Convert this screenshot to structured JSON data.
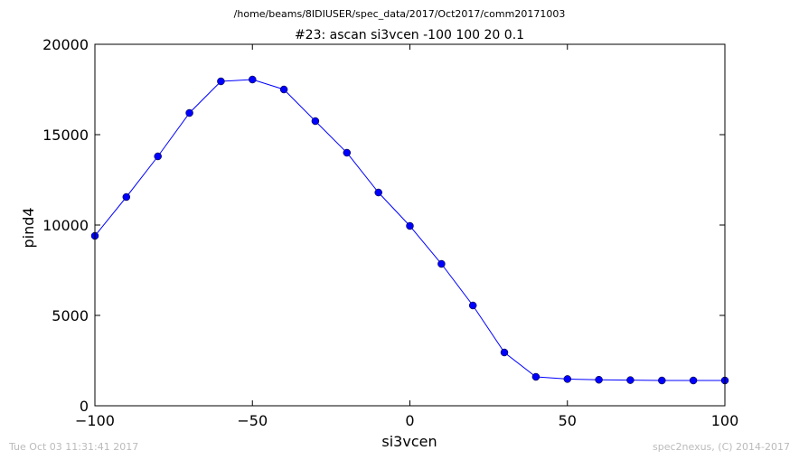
{
  "header": {
    "path": "/home/beams/8IDIUSER/spec_data/2017/Oct2017/comm20171003",
    "footer_left": "Tue Oct 03 11:31:41 2017",
    "footer_right": "spec2nexus, (C) 2014-2017"
  },
  "chart_data": {
    "type": "line",
    "title": "#23: ascan  si3vcen -100 100  20 0.1",
    "xlabel": "si3vcen",
    "ylabel": "pind4",
    "xlim": [
      -100,
      100
    ],
    "ylim": [
      0,
      20000
    ],
    "xticks": [
      -100,
      -50,
      0,
      50,
      100
    ],
    "xtick_labels": [
      "−100",
      "−50",
      "0",
      "50",
      "100"
    ],
    "yticks": [
      0,
      5000,
      10000,
      15000,
      20000
    ],
    "ytick_labels": [
      "0",
      "5000",
      "10000",
      "15000",
      "20000"
    ],
    "grid": false,
    "series": [
      {
        "color": "#0000ff",
        "x": [
          -100,
          -90,
          -80,
          -70,
          -60,
          -50,
          -40,
          -30,
          -20,
          -10,
          0,
          10,
          20,
          30,
          40,
          50,
          60,
          70,
          80,
          90,
          100
        ],
        "y": [
          9400,
          11550,
          13800,
          16200,
          17950,
          18050,
          17500,
          15750,
          14000,
          11800,
          9950,
          7850,
          5550,
          2950,
          1600,
          1480,
          1440,
          1420,
          1400,
          1400,
          1400
        ]
      }
    ]
  }
}
